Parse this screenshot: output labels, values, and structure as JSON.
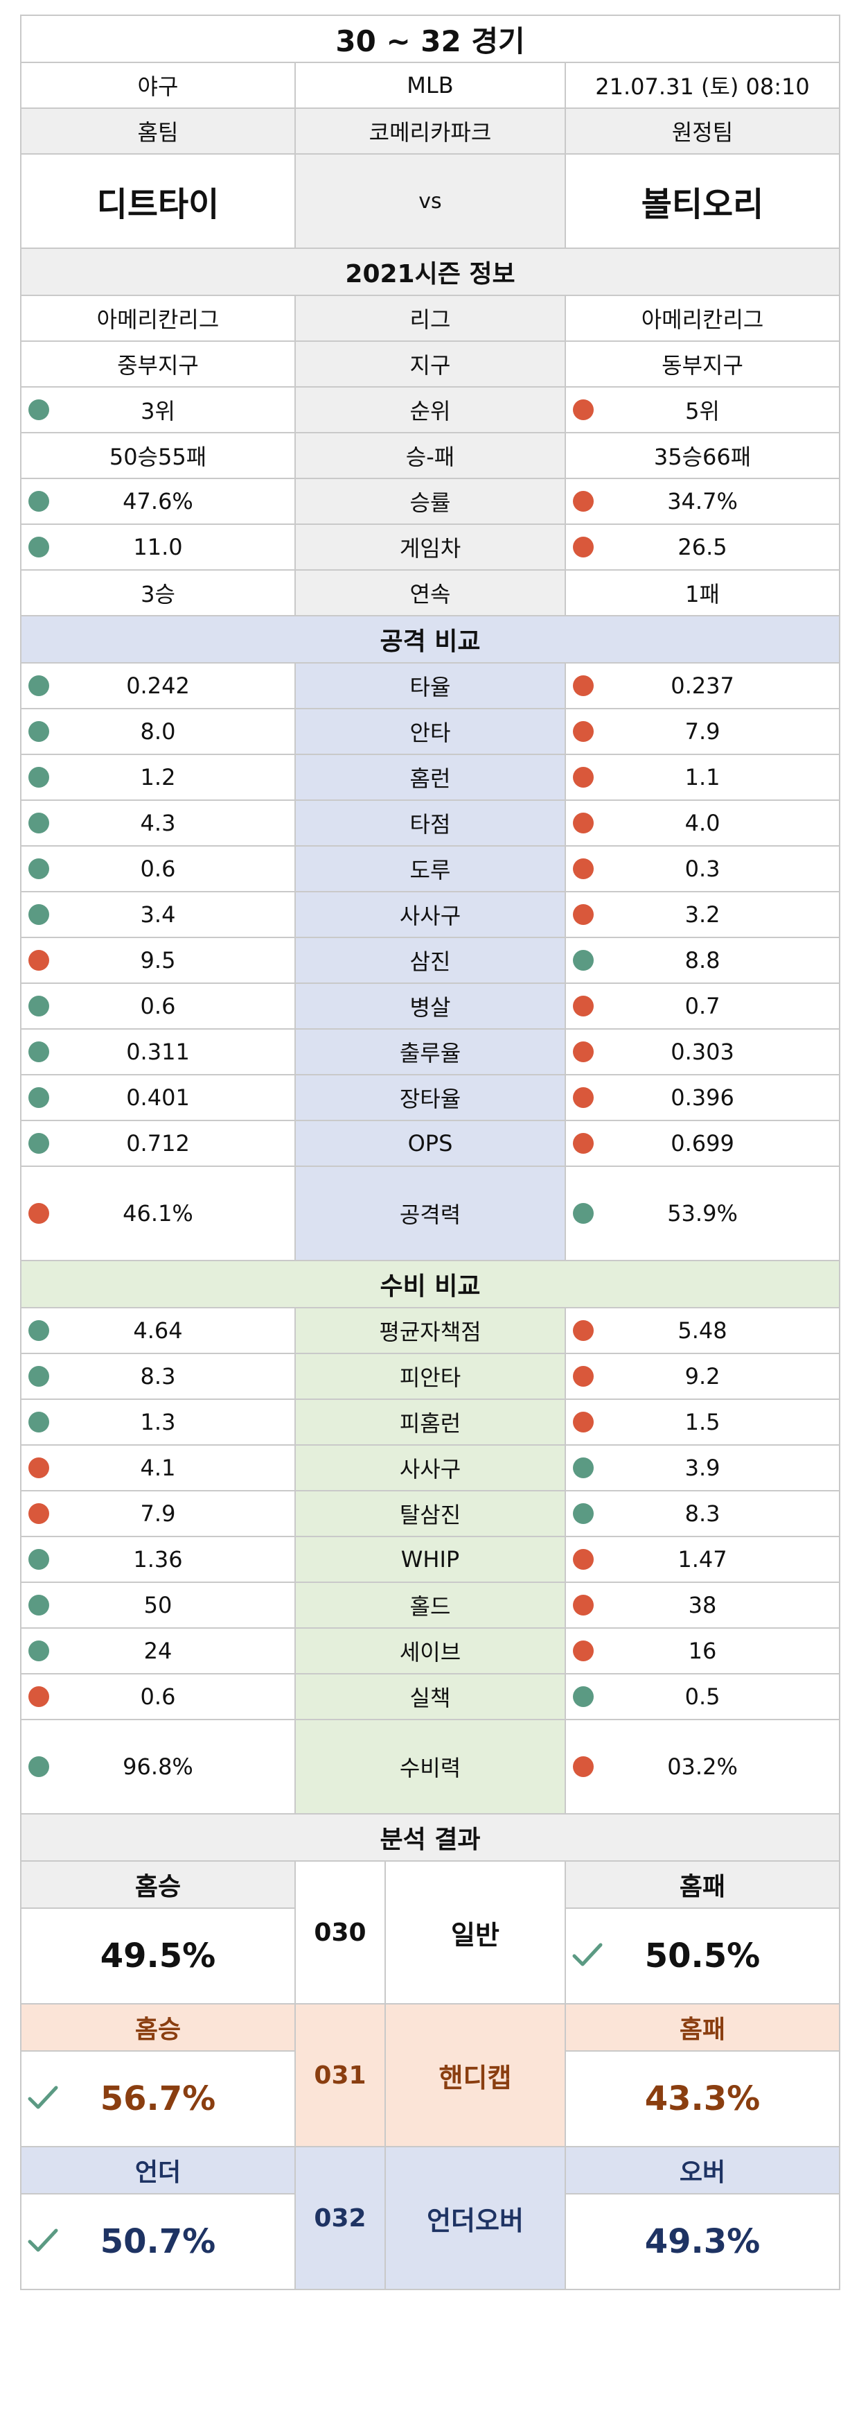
{
  "title": "30 ~ 32 경기",
  "meta": {
    "sport": "야구",
    "league": "MLB",
    "datetime": "21.07.31 (토) 08:10"
  },
  "venue": {
    "home_label": "홈팀",
    "stadium": "코메리카파크",
    "away_label": "원정팀"
  },
  "teams": {
    "home": "디트타이",
    "vs": "vs",
    "away": "볼티오리"
  },
  "season": {
    "title": "2021시즌 정보",
    "rows": [
      {
        "label": "리그",
        "home": "아메리칸리그",
        "away": "아메리칸리그",
        "home_dot": "",
        "away_dot": ""
      },
      {
        "label": "지구",
        "home": "중부지구",
        "away": "동부지구",
        "home_dot": "",
        "away_dot": ""
      },
      {
        "label": "순위",
        "home": "3위",
        "away": "5위",
        "home_dot": "g",
        "away_dot": "o"
      },
      {
        "label": "승-패",
        "home": "50승55패",
        "away": "35승66패",
        "home_dot": "",
        "away_dot": ""
      },
      {
        "label": "승률",
        "home": "47.6%",
        "away": "34.7%",
        "home_dot": "g",
        "away_dot": "o"
      },
      {
        "label": "게임차",
        "home": "11.0",
        "away": "26.5",
        "home_dot": "g",
        "away_dot": "o"
      },
      {
        "label": "연속",
        "home": "3승",
        "away": "1패",
        "home_dot": "",
        "away_dot": ""
      }
    ]
  },
  "offense": {
    "title": "공격 비교",
    "rows": [
      {
        "label": "타율",
        "home": "0.242",
        "away": "0.237",
        "home_dot": "g",
        "away_dot": "o"
      },
      {
        "label": "안타",
        "home": "8.0",
        "away": "7.9",
        "home_dot": "g",
        "away_dot": "o"
      },
      {
        "label": "홈런",
        "home": "1.2",
        "away": "1.1",
        "home_dot": "g",
        "away_dot": "o"
      },
      {
        "label": "타점",
        "home": "4.3",
        "away": "4.0",
        "home_dot": "g",
        "away_dot": "o"
      },
      {
        "label": "도루",
        "home": "0.6",
        "away": "0.3",
        "home_dot": "g",
        "away_dot": "o"
      },
      {
        "label": "사사구",
        "home": "3.4",
        "away": "3.2",
        "home_dot": "g",
        "away_dot": "o"
      },
      {
        "label": "삼진",
        "home": "9.5",
        "away": "8.8",
        "home_dot": "o",
        "away_dot": "g"
      },
      {
        "label": "병살",
        "home": "0.6",
        "away": "0.7",
        "home_dot": "g",
        "away_dot": "o"
      },
      {
        "label": "출루율",
        "home": "0.311",
        "away": "0.303",
        "home_dot": "g",
        "away_dot": "o"
      },
      {
        "label": "장타율",
        "home": "0.401",
        "away": "0.396",
        "home_dot": "g",
        "away_dot": "o"
      },
      {
        "label": "OPS",
        "home": "0.712",
        "away": "0.699",
        "home_dot": "g",
        "away_dot": "o"
      }
    ],
    "summary": {
      "label": "공격력",
      "home": "46.1%",
      "away": "53.9%",
      "home_dot": "o",
      "away_dot": "g"
    }
  },
  "defense": {
    "title": "수비 비교",
    "rows": [
      {
        "label": "평균자책점",
        "home": "4.64",
        "away": "5.48",
        "home_dot": "g",
        "away_dot": "o"
      },
      {
        "label": "피안타",
        "home": "8.3",
        "away": "9.2",
        "home_dot": "g",
        "away_dot": "o"
      },
      {
        "label": "피홈런",
        "home": "1.3",
        "away": "1.5",
        "home_dot": "g",
        "away_dot": "o"
      },
      {
        "label": "사사구",
        "home": "4.1",
        "away": "3.9",
        "home_dot": "o",
        "away_dot": "g"
      },
      {
        "label": "탈삼진",
        "home": "7.9",
        "away": "8.3",
        "home_dot": "o",
        "away_dot": "g"
      },
      {
        "label": "WHIP",
        "home": "1.36",
        "away": "1.47",
        "home_dot": "g",
        "away_dot": "o"
      },
      {
        "label": "홀드",
        "home": "50",
        "away": "38",
        "home_dot": "g",
        "away_dot": "o"
      },
      {
        "label": "세이브",
        "home": "24",
        "away": "16",
        "home_dot": "g",
        "away_dot": "o"
      },
      {
        "label": "실책",
        "home": "0.6",
        "away": "0.5",
        "home_dot": "o",
        "away_dot": "g"
      }
    ],
    "summary": {
      "label": "수비력",
      "home": "96.8%",
      "away": "03.2%",
      "home_dot": "g",
      "away_dot": "o"
    }
  },
  "analysis": {
    "title": "분석 결과",
    "general": {
      "left_label": "홈승",
      "left_value": "49.5%",
      "num": "030",
      "type": "일반",
      "right_label": "홈패",
      "right_value": "50.5%",
      "check": "right"
    },
    "handicap": {
      "left_label": "홈승",
      "left_value": "56.7%",
      "num": "031",
      "type": "핸디캡",
      "right_label": "홈패",
      "right_value": "43.3%",
      "check": "left"
    },
    "underover": {
      "left_label": "언더",
      "left_value": "50.7%",
      "num": "032",
      "type": "언더오버",
      "right_label": "오버",
      "right_value": "49.3%",
      "check": "left"
    }
  },
  "colors": {
    "green_dot": "#5b9a83",
    "orange_dot": "#d9583b",
    "check": "#5b9a83"
  },
  "icons": {
    "dot": "status-dot-icon",
    "check": "check-icon"
  }
}
